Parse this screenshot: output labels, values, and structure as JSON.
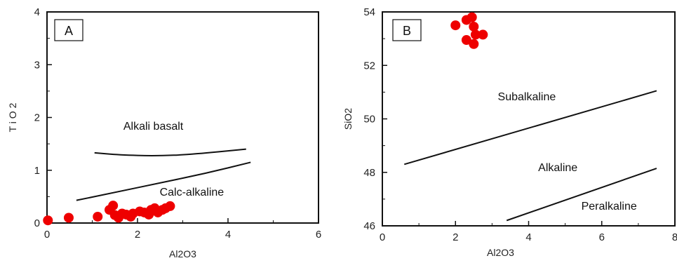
{
  "chart_data": [
    {
      "type": "scatter",
      "panel_label": "A",
      "xlabel": "Al2O3",
      "ylabel": "T i O 2",
      "xlim": [
        0,
        6
      ],
      "ylim": [
        0,
        4
      ],
      "xticks": [
        "0",
        "2",
        "4",
        "6"
      ],
      "yticks": [
        "0",
        "1",
        "2",
        "3",
        "4"
      ],
      "point_color": "#ee0000",
      "points": [
        [
          0.02,
          0.05
        ],
        [
          0.48,
          0.1
        ],
        [
          1.12,
          0.12
        ],
        [
          1.38,
          0.25
        ],
        [
          1.46,
          0.33
        ],
        [
          1.5,
          0.15
        ],
        [
          1.58,
          0.1
        ],
        [
          1.66,
          0.18
        ],
        [
          1.75,
          0.16
        ],
        [
          1.85,
          0.12
        ],
        [
          1.9,
          0.18
        ],
        [
          2.05,
          0.22
        ],
        [
          2.15,
          0.2
        ],
        [
          2.25,
          0.16
        ],
        [
          2.3,
          0.25
        ],
        [
          2.38,
          0.28
        ],
        [
          2.45,
          0.2
        ],
        [
          2.55,
          0.25
        ],
        [
          2.62,
          0.28
        ],
        [
          2.72,
          0.32
        ]
      ],
      "boundaries": [
        {
          "name": "upper",
          "points": [
            [
              1.05,
              1.33
            ],
            [
              1.6,
              1.29
            ],
            [
              2.4,
              1.27
            ],
            [
              3.2,
              1.3
            ],
            [
              4.4,
              1.4
            ]
          ]
        },
        {
          "name": "lower",
          "points": [
            [
              0.65,
              0.43
            ],
            [
              1.5,
              0.58
            ],
            [
              2.5,
              0.76
            ],
            [
              3.5,
              0.94
            ],
            [
              4.5,
              1.15
            ]
          ]
        }
      ],
      "annotations": [
        {
          "text": "Alkali basalt",
          "x": 2.35,
          "y": 1.77
        },
        {
          "text": "Calc-alkaline",
          "x": 3.2,
          "y": 0.52
        }
      ]
    },
    {
      "type": "scatter",
      "panel_label": "B",
      "xlabel": "Al2O3",
      "ylabel": "SiO2",
      "xlim": [
        0,
        8
      ],
      "ylim": [
        46,
        54
      ],
      "xticks": [
        "0",
        "2",
        "4",
        "6",
        "8"
      ],
      "yticks": [
        "46",
        "48",
        "50",
        "52",
        "54"
      ],
      "point_color": "#ee0000",
      "points": [
        [
          2.0,
          53.5
        ],
        [
          2.3,
          53.7
        ],
        [
          2.45,
          53.8
        ],
        [
          2.5,
          53.45
        ],
        [
          2.55,
          53.15
        ],
        [
          2.75,
          53.15
        ],
        [
          2.3,
          52.95
        ],
        [
          2.5,
          52.8
        ]
      ],
      "boundaries": [
        {
          "name": "subalkaline-alkaline",
          "points": [
            [
              0.6,
              48.3
            ],
            [
              7.5,
              51.05
            ]
          ]
        },
        {
          "name": "alkaline-peralkaline",
          "points": [
            [
              3.4,
              46.2
            ],
            [
              7.5,
              48.15
            ]
          ]
        }
      ],
      "annotations": [
        {
          "text": "Subalkaline",
          "x": 3.95,
          "y": 50.7
        },
        {
          "text": "Alkaline",
          "x": 4.8,
          "y": 48.05
        },
        {
          "text": "Peralkaline",
          "x": 6.2,
          "y": 46.6
        }
      ]
    }
  ]
}
